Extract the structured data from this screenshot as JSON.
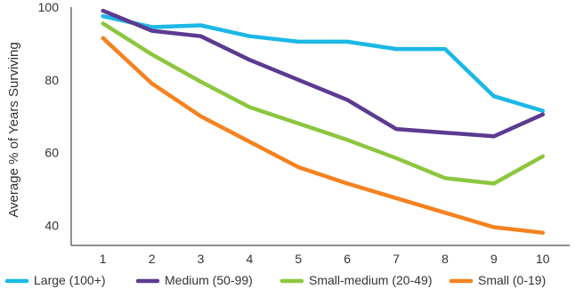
{
  "chart_data": {
    "type": "line",
    "title": "",
    "xlabel": "",
    "ylabel": "Average % of Years Surviving",
    "x": [
      1,
      2,
      3,
      4,
      5,
      6,
      7,
      8,
      9,
      10
    ],
    "x_tick_labels": [
      "1",
      "2",
      "3",
      "4",
      "5",
      "6",
      "7",
      "8",
      "9",
      "10"
    ],
    "y_ticks": [
      40,
      60,
      80,
      100
    ],
    "y_tick_labels": [
      "40",
      "60",
      "80",
      "100"
    ],
    "xlim": [
      0.35,
      10.55
    ],
    "ylim": [
      34.5,
      100
    ],
    "grid": false,
    "legend_position": "bottom",
    "series": [
      {
        "name": "Large (100+)",
        "color": "#1cb8e6",
        "values": [
          97.5,
          94.5,
          95,
          92,
          90.5,
          90.5,
          88.5,
          88.5,
          75.5,
          71.5
        ]
      },
      {
        "name": "Medium (50-99)",
        "color": "#5b3b91",
        "values": [
          99,
          93.5,
          92,
          85.5,
          80,
          74.5,
          66.5,
          65.5,
          64.5,
          70.5
        ]
      },
      {
        "name": "Small-medium (20-49)",
        "color": "#8dc63f",
        "values": [
          95.5,
          87,
          79.5,
          72.5,
          68,
          63.5,
          58.5,
          53,
          51.5,
          59
        ]
      },
      {
        "name": "Small (0-19)",
        "color": "#f58220",
        "values": [
          91.5,
          79,
          70,
          63,
          56,
          51.5,
          47.5,
          43.5,
          39.5,
          38
        ]
      }
    ]
  }
}
